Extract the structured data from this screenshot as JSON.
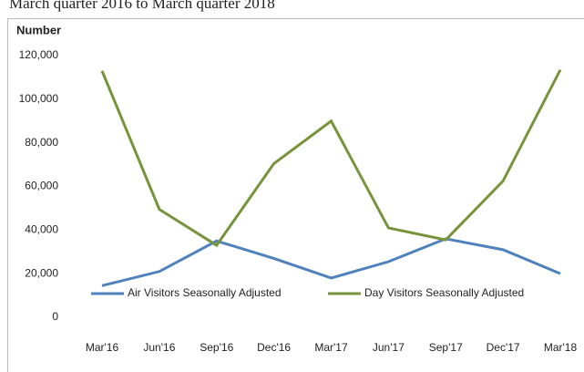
{
  "chart_data": {
    "type": "line",
    "subtitle": "March quarter 2016 to March quarter 2018",
    "y_label": "Number",
    "categories": [
      "Mar'16",
      "Jun'16",
      "Sep'16",
      "Dec'16",
      "Mar'17",
      "Jun'17",
      "Sep'17",
      "Dec'17",
      "Mar'18"
    ],
    "series": [
      {
        "name": "Air Visitors Seasonally Adjusted",
        "color": "#4f81bd",
        "values": [
          14500,
          21000,
          35000,
          27000,
          18000,
          25500,
          36000,
          31000,
          20000
        ]
      },
      {
        "name": "Day Visitors Seasonally Adjusted",
        "color": "#77933c",
        "values": [
          113000,
          49500,
          33000,
          70500,
          90000,
          41000,
          35500,
          62500,
          113500
        ]
      }
    ],
    "ylim": [
      0,
      120000
    ],
    "yticks": [
      0,
      {
        "value": 20000,
        "label": "20,000"
      },
      {
        "value": 40000,
        "label": "40,000"
      },
      {
        "value": 60000,
        "label": "60,000"
      },
      {
        "value": 80000,
        "label": "80,000"
      },
      {
        "value": 100000,
        "label": "100,000"
      },
      {
        "value": 120000,
        "label": "120,000"
      }
    ],
    "legend": "bottom"
  }
}
